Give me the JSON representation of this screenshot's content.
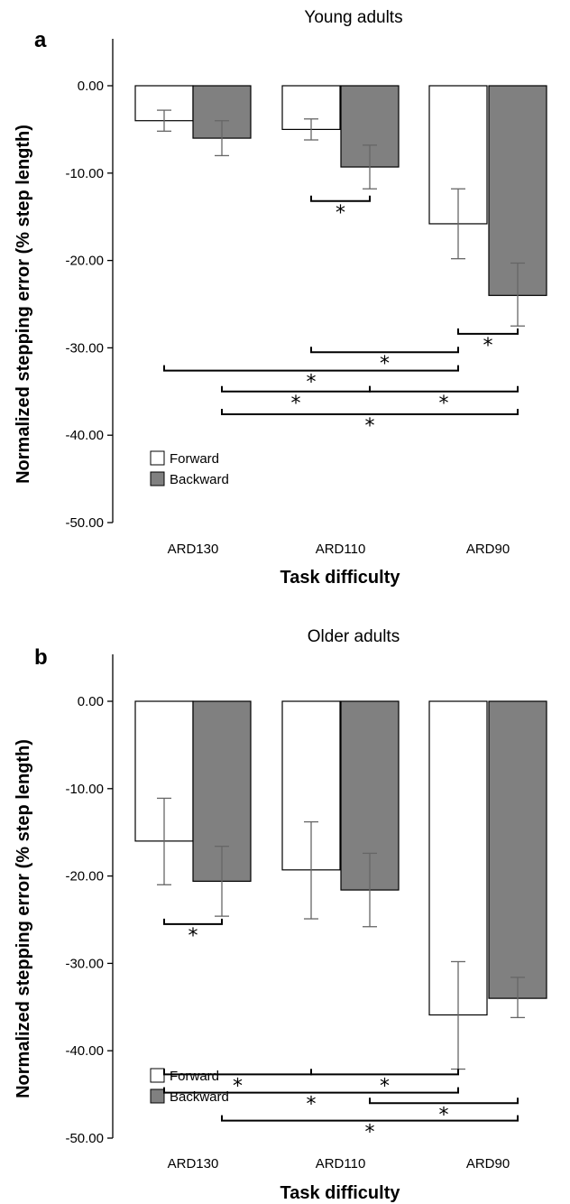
{
  "chart_data": [
    {
      "type": "bar",
      "panel": "a",
      "title": "Young adults",
      "xlabel": "Task difficulty",
      "ylabel": "Normalized stepping error (% step length)",
      "categories": [
        "ARD130",
        "ARD110",
        "ARD90"
      ],
      "ylim": [
        -50,
        0
      ],
      "yticks": [
        "0.00",
        "-10.00",
        "-20.00",
        "-30.00",
        "-40.00",
        "-50.00"
      ],
      "legend": {
        "position": "bottom-left",
        "entries": [
          "Forward",
          "Backward"
        ]
      },
      "series": [
        {
          "name": "Forward",
          "color": "#ffffff",
          "values": [
            -4.0,
            -5.0,
            -15.8
          ],
          "err_low": [
            -5.2,
            -6.2,
            -19.8
          ],
          "err_high": [
            -2.8,
            -3.8,
            -11.8
          ]
        },
        {
          "name": "Backward",
          "color": "#808080",
          "values": [
            -6.0,
            -9.3,
            -24.0
          ],
          "err_low": [
            -8.0,
            -11.8,
            -27.5
          ],
          "err_high": [
            -4.0,
            -6.8,
            -20.3
          ]
        }
      ],
      "significance": [
        {
          "from": [
            "ARD110",
            "Forward"
          ],
          "to": [
            "ARD110",
            "Backward"
          ],
          "y": -13.2,
          "label": "*"
        },
        {
          "from": [
            "ARD90",
            "Forward"
          ],
          "to": [
            "ARD90",
            "Backward"
          ],
          "y": -28.4,
          "label": "*"
        },
        {
          "from": [
            "ARD110",
            "Forward"
          ],
          "to": [
            "ARD90",
            "Forward"
          ],
          "y": -30.5,
          "label": "*"
        },
        {
          "from": [
            "ARD130",
            "Forward"
          ],
          "to": [
            "ARD90",
            "Forward"
          ],
          "y": -32.6,
          "label": "*"
        },
        {
          "from": [
            "ARD130",
            "Backward"
          ],
          "to": [
            "ARD110",
            "Backward"
          ],
          "y": -35.0,
          "label": "*"
        },
        {
          "from": [
            "ARD110",
            "Backward"
          ],
          "to": [
            "ARD90",
            "Backward"
          ],
          "y": -35.0,
          "label": "*"
        },
        {
          "from": [
            "ARD130",
            "Backward"
          ],
          "to": [
            "ARD90",
            "Backward"
          ],
          "y": -37.6,
          "label": "*"
        }
      ]
    },
    {
      "type": "bar",
      "panel": "b",
      "title": "Older adults",
      "xlabel": "Task difficulty",
      "ylabel": "Normalized stepping error (% step length)",
      "categories": [
        "ARD130",
        "ARD110",
        "ARD90"
      ],
      "ylim": [
        -50,
        0
      ],
      "yticks": [
        "0.00",
        "-10.00",
        "-20.00",
        "-30.00",
        "-40.00",
        "-50.00"
      ],
      "legend": {
        "position": "bottom-left",
        "entries": [
          "Forward",
          "Backward"
        ]
      },
      "series": [
        {
          "name": "Forward",
          "color": "#ffffff",
          "values": [
            -16.0,
            -19.3,
            -35.9
          ],
          "err_low": [
            -21.0,
            -24.9,
            -42.1
          ],
          "err_high": [
            -11.1,
            -13.8,
            -29.8
          ]
        },
        {
          "name": "Backward",
          "color": "#808080",
          "values": [
            -20.6,
            -21.6,
            -34.0
          ],
          "err_low": [
            -24.6,
            -25.8,
            -36.2
          ],
          "err_high": [
            -16.6,
            -17.4,
            -31.6
          ]
        }
      ],
      "significance": [
        {
          "from": [
            "ARD130",
            "Forward"
          ],
          "to": [
            "ARD130",
            "Backward"
          ],
          "y": -25.5,
          "label": "*"
        },
        {
          "from": [
            "ARD130",
            "Forward"
          ],
          "to": [
            "ARD110",
            "Forward"
          ],
          "y": -42.7,
          "label": "*"
        },
        {
          "from": [
            "ARD110",
            "Forward"
          ],
          "to": [
            "ARD90",
            "Forward"
          ],
          "y": -42.7,
          "label": "*"
        },
        {
          "from": [
            "ARD130",
            "Forward"
          ],
          "to": [
            "ARD90",
            "Forward"
          ],
          "y": -44.8,
          "label": "*"
        },
        {
          "from": [
            "ARD110",
            "Backward"
          ],
          "to": [
            "ARD90",
            "Backward"
          ],
          "y": -46.0,
          "label": "*"
        },
        {
          "from": [
            "ARD130",
            "Backward"
          ],
          "to": [
            "ARD90",
            "Backward"
          ],
          "y": -48.0,
          "label": "*"
        }
      ]
    }
  ]
}
